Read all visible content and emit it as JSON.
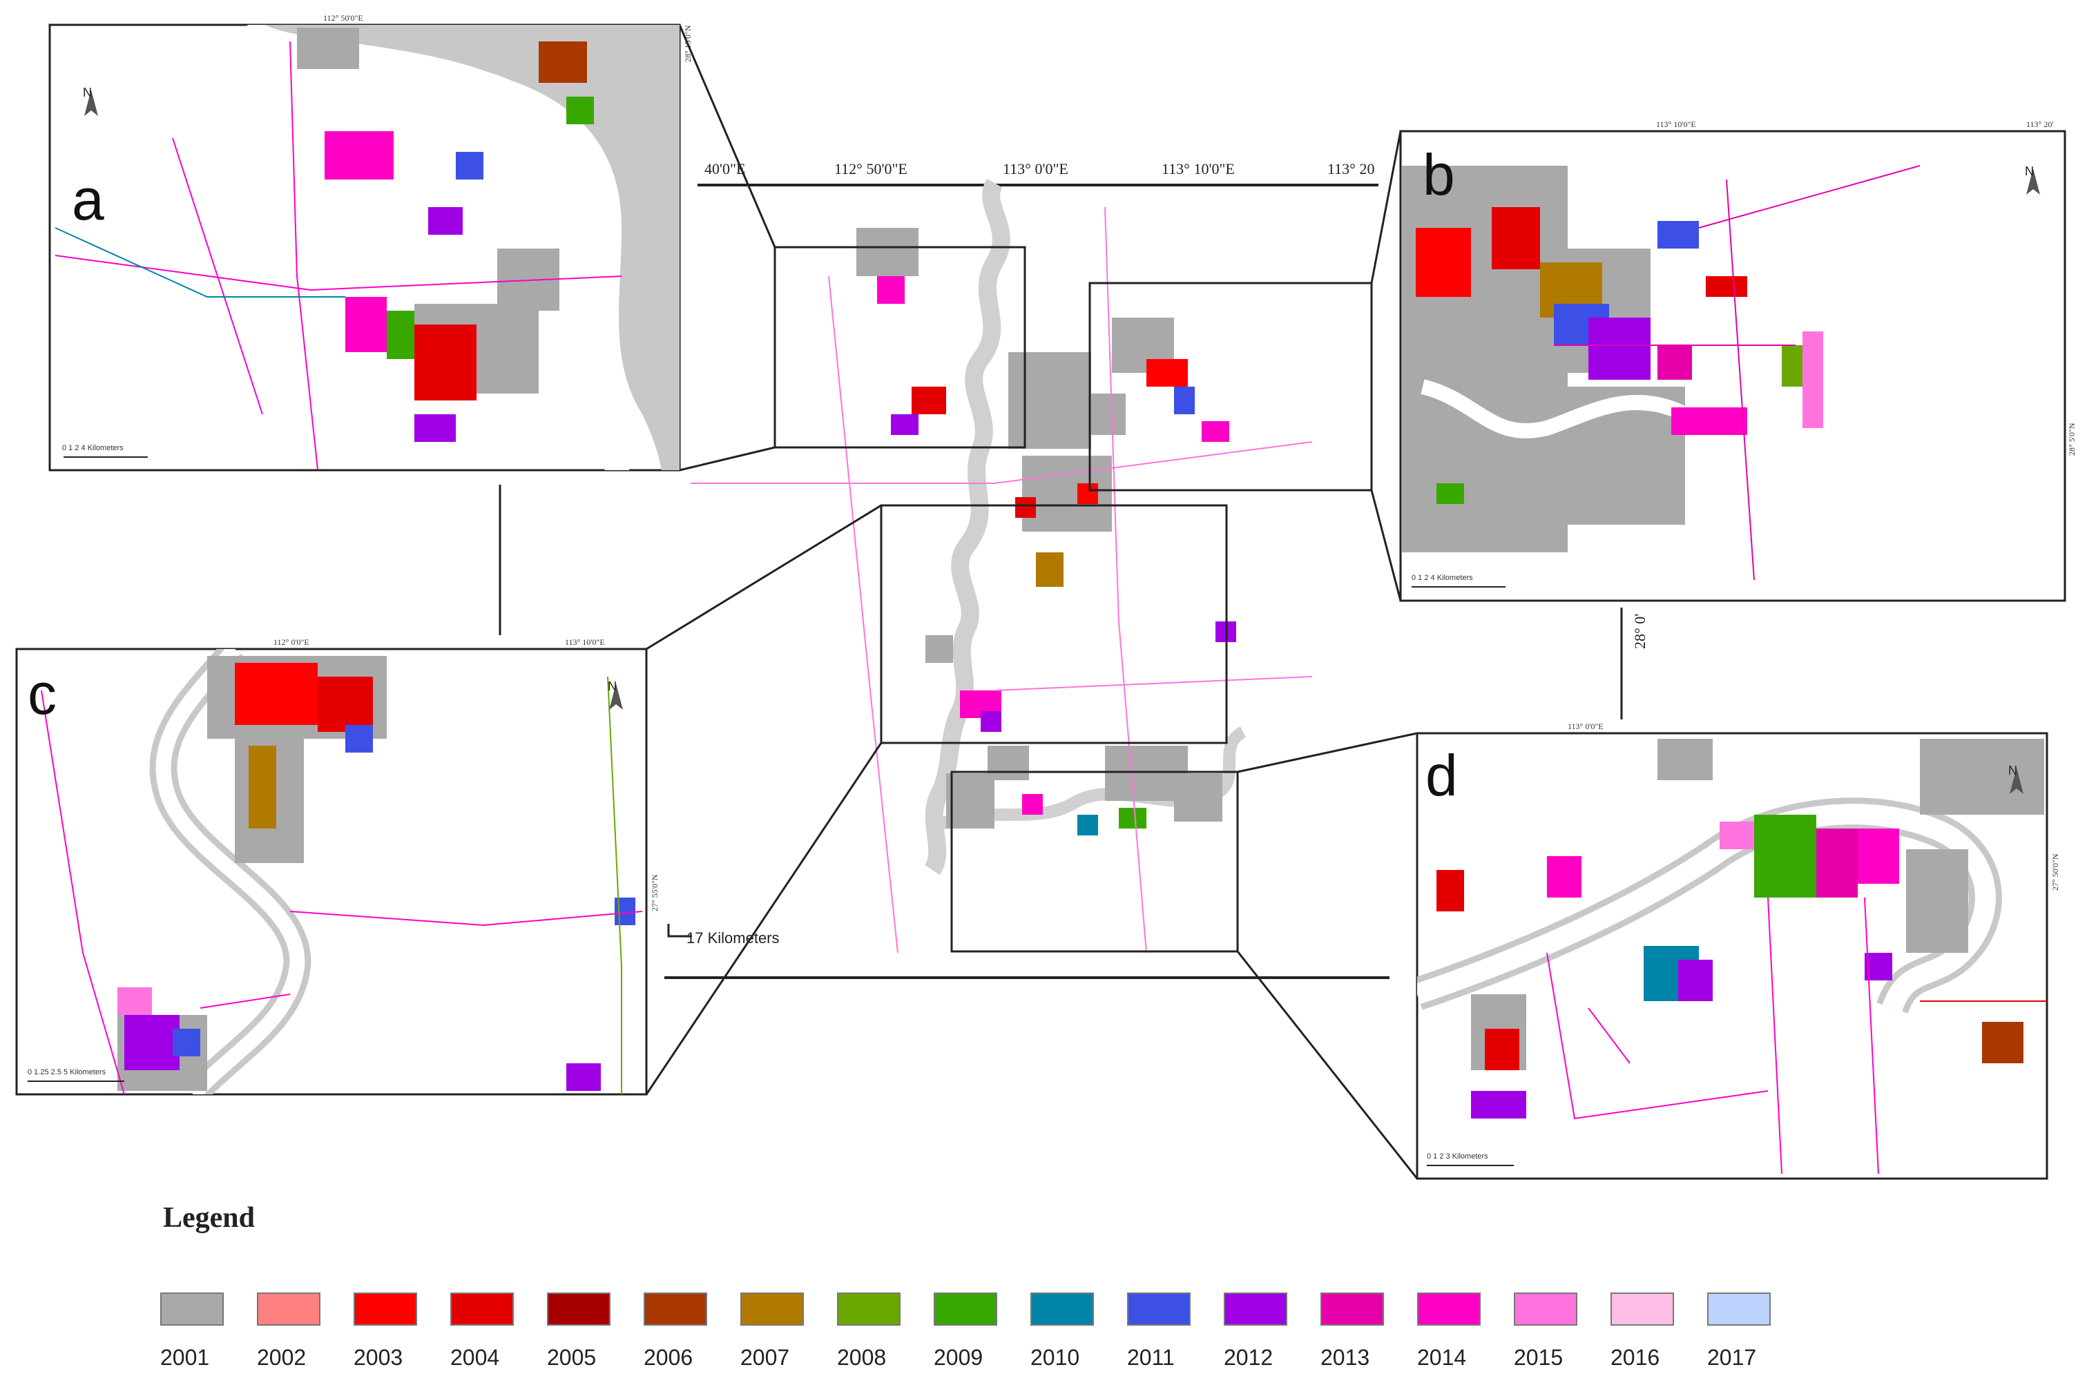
{
  "main_map": {
    "top_coordinates": [
      "40'0\"E",
      "112° 50'0\"E",
      "113° 0'0\"E",
      "113° 10'0\"E",
      "113° 20"
    ],
    "scale_label": "17 Kilometers",
    "side_latitude": "28° 0'"
  },
  "insets": [
    {
      "letter": "a",
      "coord_top": "112° 50'0\"E",
      "coord_side": "28° 15'0\"N",
      "scale_label": "0 1 2 4 Kilometers"
    },
    {
      "letter": "b",
      "coord_top": "113° 10'0\"E",
      "coord_top_right": "113° 20'",
      "coord_side": "28° 5'0\"N",
      "scale_label": "0 1 2 4 Kilometers"
    },
    {
      "letter": "c",
      "coord_top": "112° 0'0\"E",
      "coord_top_right": "113° 10'0\"E",
      "coord_side": "27° 55'0\"N",
      "scale_label": "0 1.25 2.5 5 Kilometers"
    },
    {
      "letter": "d",
      "coord_top": "113° 0'0\"E",
      "coord_side": "27° 50'0\"N",
      "scale_label": "0 1 2 3 Kilometers"
    }
  ],
  "north_arrow_symbol": "N",
  "legend": {
    "title": "Legend",
    "items": [
      {
        "year": "2001",
        "color": "#a9a9a9"
      },
      {
        "year": "2002",
        "color": "#ff8080"
      },
      {
        "year": "2003",
        "color": "#ff0000"
      },
      {
        "year": "2004",
        "color": "#e50000"
      },
      {
        "year": "2005",
        "color": "#a80000"
      },
      {
        "year": "2006",
        "color": "#a83800"
      },
      {
        "year": "2007",
        "color": "#b07a00"
      },
      {
        "year": "2008",
        "color": "#6aa800"
      },
      {
        "year": "2009",
        "color": "#38a800"
      },
      {
        "year": "2010",
        "color": "#0084a8"
      },
      {
        "year": "2011",
        "color": "#3c50e6"
      },
      {
        "year": "2012",
        "color": "#a000e6"
      },
      {
        "year": "2013",
        "color": "#e600a9"
      },
      {
        "year": "2014",
        "color": "#ff00c5"
      },
      {
        "year": "2015",
        "color": "#ff73df"
      },
      {
        "year": "2016",
        "color": "#ffbee8"
      },
      {
        "year": "2017",
        "color": "#bed2ff"
      }
    ]
  }
}
